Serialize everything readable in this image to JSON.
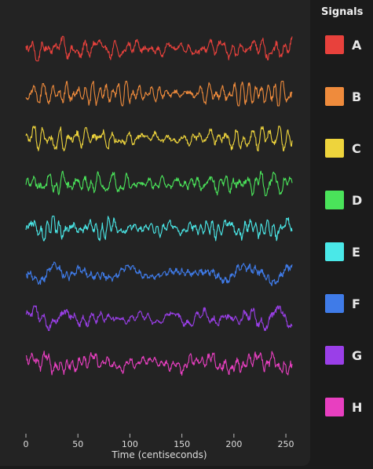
{
  "chart_data": {
    "type": "line",
    "title": "",
    "xlabel": "Time (centiseconds)",
    "ylabel": "",
    "xlim": [
      0,
      256
    ],
    "xticks": [
      0,
      50,
      100,
      150,
      200,
      250
    ],
    "grid": false,
    "legend": {
      "title": "Signals",
      "placement": "right"
    },
    "series": [
      {
        "name": "A",
        "color": "#e8413c"
      },
      {
        "name": "B",
        "color": "#ef8b3c"
      },
      {
        "name": "C",
        "color": "#eed43c"
      },
      {
        "name": "D",
        "color": "#4ae35a"
      },
      {
        "name": "E",
        "color": "#4ae8e8"
      },
      {
        "name": "F",
        "color": "#3f7be8"
      },
      {
        "name": "G",
        "color": "#9a3fe8"
      },
      {
        "name": "H",
        "color": "#e83fc0"
      }
    ]
  }
}
